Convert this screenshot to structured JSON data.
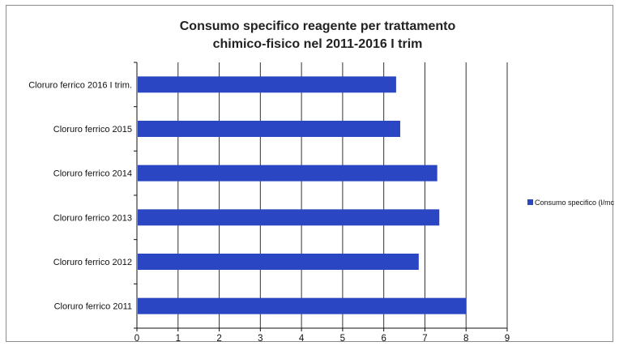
{
  "chart_data": {
    "type": "bar",
    "orientation": "horizontal",
    "title_lines": [
      "Consumo specifico reagente per trattamento",
      "chimico-fisico  nel 2011-2016 I trim"
    ],
    "categories": [
      "Cloruro ferrico 2016 I trim.",
      "Cloruro ferrico 2015",
      "Cloruro ferrico 2014",
      "Cloruro ferrico 2013",
      "Cloruro ferrico 2012",
      "Cloruro ferrico 2011"
    ],
    "series": [
      {
        "name": "Consumo specifico (l/mc)",
        "values": [
          6.3,
          6.4,
          7.3,
          7.35,
          6.85,
          8.0
        ]
      }
    ],
    "xlim": [
      0,
      9
    ],
    "xticks": [
      "0",
      "1",
      "2",
      "3",
      "4",
      "5",
      "6",
      "7",
      "8",
      "9"
    ],
    "grid": "vertical",
    "legend_position": "right",
    "colors": {
      "bar": "#2b46c2",
      "grid": "#333333",
      "axis": "#111111"
    }
  }
}
